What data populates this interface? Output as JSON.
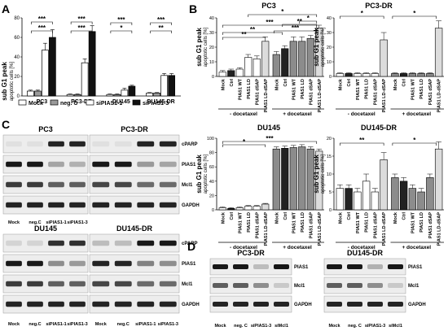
{
  "panels": {
    "A": "A",
    "B": "B",
    "C": "C",
    "D": "D"
  },
  "star": "*",
  "panelA": {
    "ylabel": "sub G1 peak",
    "ylabel2": "apoptotic cells [%]",
    "yticks": [
      "0",
      "20",
      "40",
      "60",
      "80"
    ],
    "legend": [
      "Mock",
      "neg. C",
      "siPIAS1-1",
      "siPIAS1-3"
    ],
    "colors": [
      "#ffffff",
      "#9a9a9a",
      "#ffffff",
      "#111111"
    ],
    "chart_data": {
      "type": "bar",
      "categories": [
        "PC3",
        "PC3-DR",
        "DU145",
        "DU145-DR"
      ],
      "ylim": [
        0,
        80
      ],
      "series": [
        {
          "name": "Mock",
          "values": [
            5,
            1.5,
            1.5,
            3
          ]
        },
        {
          "name": "neg. C",
          "values": [
            5,
            1.5,
            1.5,
            3
          ]
        },
        {
          "name": "siPIAS1-1",
          "values": [
            47,
            34,
            6,
            21
          ]
        },
        {
          "name": "siPIAS1-3",
          "values": [
            60,
            66,
            10,
            21
          ]
        }
      ],
      "errors": [
        [
          1,
          0.5,
          0.5,
          0.5
        ],
        [
          1,
          0.5,
          0.5,
          0.5
        ],
        [
          7,
          4,
          2,
          2
        ],
        [
          8,
          6,
          1,
          2
        ]
      ]
    }
  },
  "panelB": {
    "ylabel": "sub G1 peak",
    "ylabel2": "apoptotic cells [%]",
    "xlabels": [
      "Mock",
      "Ctrl",
      "PIAS1 WT",
      "PIAS1 LD",
      "PIAS1 dSAP",
      "PIAS1 LD-dSAP",
      "Mock",
      "Ctrl",
      "PIAS1 WT",
      "PIAS1 LD",
      "PIAS1 dSAP",
      "PIAS1 LD-dSAP"
    ],
    "groups": [
      "- docetaxel",
      "+ docetaxel"
    ],
    "colors": [
      "#ffffff",
      "#222222",
      "#ffffff",
      "#ffffff",
      "#ffffff",
      "#dcdcdc",
      "#8c8c8c",
      "#222222",
      "#8c8c8c",
      "#8c8c8c",
      "#8c8c8c",
      "#dcdcdc"
    ],
    "charts": [
      {
        "title": "PC3",
        "yticks": [
          "0",
          "10",
          "20",
          "30",
          "40"
        ],
        "ymax": 40,
        "values": [
          3,
          4,
          5,
          13,
          12,
          24,
          15,
          19,
          24,
          24,
          26,
          33
        ],
        "errors": [
          1,
          1,
          1,
          2,
          2,
          3,
          2,
          2,
          3,
          3,
          2,
          2
        ]
      },
      {
        "title": "PC3-DR",
        "yticks": [
          "0",
          "10",
          "20",
          "30",
          "40"
        ],
        "ymax": 40,
        "values": [
          2,
          2,
          2,
          2,
          2,
          25,
          2,
          2,
          2,
          2,
          2,
          33
        ],
        "errors": [
          0.5,
          0.5,
          0.5,
          0.5,
          0.5,
          5,
          0.5,
          0.5,
          0.5,
          0.5,
          0.5,
          5
        ]
      },
      {
        "title": "DU145",
        "yticks": [
          "0",
          "20",
          "40",
          "60",
          "80",
          "100"
        ],
        "ymax": 100,
        "values": [
          3,
          2,
          3,
          5,
          5,
          8,
          85,
          86,
          87,
          88,
          85,
          82
        ],
        "errors": [
          1,
          1,
          1,
          1,
          1,
          1,
          3,
          3,
          3,
          3,
          3,
          3
        ]
      },
      {
        "title": "DU145-DR",
        "yticks": [
          "0",
          "5",
          "10",
          "15",
          "20"
        ],
        "ymax": 20,
        "values": [
          6,
          6,
          5,
          8,
          5,
          14,
          9,
          8,
          6,
          5,
          9,
          17
        ],
        "errors": [
          1,
          1,
          1,
          2,
          1,
          2,
          1,
          1,
          1,
          1,
          1,
          2
        ]
      }
    ]
  },
  "panelC": {
    "rows": [
      "cPARP",
      "PIAS1",
      "Mcl1",
      "GAPDH"
    ],
    "lanes": [
      "Mock",
      "neg.C",
      "siPIAS1-1",
      "siPIAS1-3"
    ],
    "blots": [
      {
        "title": "PC3"
      },
      {
        "title": "PC3-DR"
      },
      {
        "title": "DU145"
      },
      {
        "title": "DU145-DR"
      }
    ]
  },
  "panelD": {
    "rows": [
      "PIAS1",
      "Mcl1",
      "GAPDH"
    ],
    "lanes": [
      "Mock",
      "neg. C",
      "siPIAS1-3",
      "siMcl1"
    ],
    "blots": [
      {
        "title": "PC3-DR"
      },
      {
        "title": "DU145-DR"
      }
    ]
  }
}
